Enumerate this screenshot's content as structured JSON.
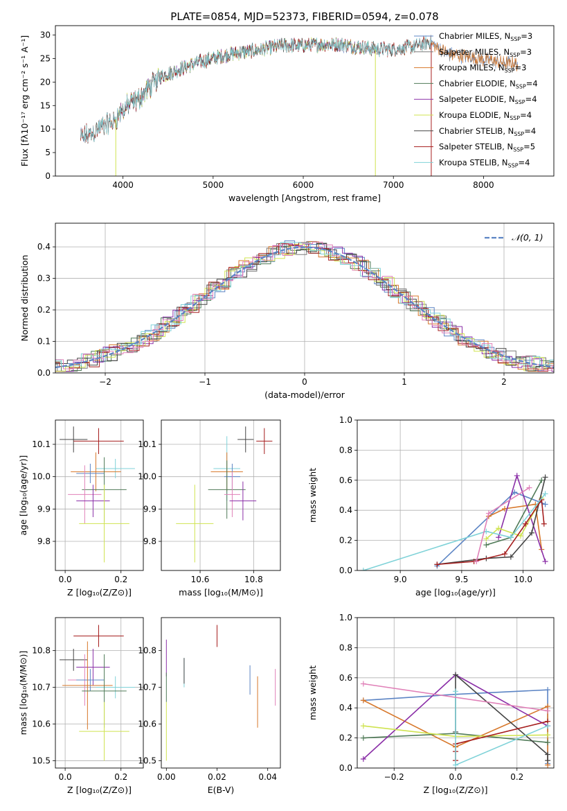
{
  "title": "PLATE=0854, MJD=52373, FIBERID=0594, z=0.078",
  "colors": {
    "chabrier_miles": "#5b84c4",
    "salpeter_miles": "#7a7a7a",
    "kroupa_miles": "#d7772a",
    "chabrier_elodie": "#4f7a57",
    "salpeter_elodie": "#8a2ea7",
    "kroupa_elodie": "#cfe34f",
    "chabrier_stelib": "#444444",
    "salpeter_stelib": "#a51d1d",
    "kroupa_stelib": "#7fd2d8",
    "pink": "#e080b8",
    "gauss": "#5b84c4",
    "grid": "#b0b0b0"
  },
  "chart_data": [
    {
      "type": "line",
      "title": "PLATE=0854, MJD=52373, FIBERID=0594, z=0.078",
      "xlabel": "wavelength [Angstrom, rest frame]",
      "ylabel": "Flux [fλ10⁻¹⁷ erg cm⁻² s⁻¹ A⁻¹]",
      "xlim": [
        3250,
        8780
      ],
      "ylim": [
        0,
        32
      ],
      "xticks": [
        4000,
        5000,
        6000,
        7000,
        8000
      ],
      "yticks": [
        0,
        5,
        10,
        15,
        20,
        25,
        30
      ],
      "grid": false,
      "legend_position": "upper-right",
      "legend": [
        {
          "name": "Chabrier MILES, N",
          "sub": "SSP",
          "tail": "=3"
        },
        {
          "name": "Salpeter MILES, N",
          "sub": "SSP",
          "tail": "=3"
        },
        {
          "name": "Kroupa MILES, N",
          "sub": "SSP",
          "tail": "=3"
        },
        {
          "name": "Chabrier ELODIE, N",
          "sub": "SSP",
          "tail": "=4"
        },
        {
          "name": "Salpeter ELODIE, N",
          "sub": "SSP",
          "tail": "=4"
        },
        {
          "name": "Kroupa ELODIE, N",
          "sub": "SSP",
          "tail": "=4"
        },
        {
          "name": "Chabrier STELIB, N",
          "sub": "SSP",
          "tail": "=4"
        },
        {
          "name": "Salpeter STELIB, N",
          "sub": "SSP",
          "tail": "=5"
        },
        {
          "name": "Kroupa STELIB, N",
          "sub": "SSP",
          "tail": "=4"
        }
      ],
      "continuum": [
        [
          3530,
          8
        ],
        [
          3650,
          9
        ],
        [
          3800,
          11
        ],
        [
          3900,
          11.5
        ],
        [
          3950,
          13
        ],
        [
          4050,
          15
        ],
        [
          4150,
          16
        ],
        [
          4300,
          19
        ],
        [
          4400,
          21
        ],
        [
          4600,
          22.5
        ],
        [
          4800,
          24
        ],
        [
          5000,
          25
        ],
        [
          5200,
          26
        ],
        [
          5400,
          26.5
        ],
        [
          5600,
          27.2
        ],
        [
          5800,
          27.8
        ],
        [
          6000,
          27.8
        ],
        [
          6200,
          28
        ],
        [
          6400,
          28
        ],
        [
          6600,
          27.5
        ],
        [
          6800,
          27
        ],
        [
          7000,
          27
        ],
        [
          7200,
          27.5
        ],
        [
          7400,
          28.5
        ],
        [
          7600,
          26
        ],
        [
          7800,
          25.5
        ],
        [
          8000,
          24.8
        ],
        [
          8200,
          24.2
        ],
        [
          8380,
          23.8
        ]
      ]
    },
    {
      "type": "bar",
      "xlabel": "(data-model)/error",
      "ylabel": "Normed distribution",
      "xlim": [
        -2.5,
        2.5
      ],
      "ylim": [
        0,
        0.475
      ],
      "xticks": [
        -2,
        -1,
        0,
        1,
        2
      ],
      "yticks": [
        0.0,
        0.1,
        0.2,
        0.3,
        0.4
      ],
      "grid": true,
      "legend_position": "upper-right",
      "gaussian_label": "𝒩(0, 1)",
      "bin_width": 0.1
    },
    {
      "type": "scatter",
      "xlabel": "Z [log₁₀(Z/Z⊙)]",
      "ylabel": "age  [log₁₀(age/yr)]",
      "xlim": [
        -0.035,
        0.28
      ],
      "ylim": [
        9.71,
        10.175
      ],
      "xticks": [
        0.0,
        0.2
      ],
      "yticks": [
        9.8,
        9.9,
        10.0,
        10.1
      ],
      "grid": true,
      "points": [
        {
          "c": "chabrier_stelib",
          "x": 0.03,
          "y": 10.115,
          "xe": 0.05,
          "ye": 0.04
        },
        {
          "c": "salpeter_stelib",
          "x": 0.12,
          "y": 10.11,
          "xe": 0.09,
          "ye": 0.04
        },
        {
          "c": "kroupa_stelib",
          "x": 0.18,
          "y": 10.025,
          "xe": 0.07,
          "ye": 0.03
        },
        {
          "c": "kroupa_miles",
          "x": 0.11,
          "y": 10.015,
          "xe": 0.09,
          "ye": 0.06
        },
        {
          "c": "chabrier_miles",
          "x": 0.09,
          "y": 10.01,
          "xe": 0.05,
          "ye": 0.03
        },
        {
          "c": "chabrier_elodie",
          "x": 0.14,
          "y": 9.96,
          "xe": 0.08,
          "ye": 0.1
        },
        {
          "c": "pink",
          "x": 0.07,
          "y": 9.945,
          "xe": 0.06,
          "ye": 0.09
        },
        {
          "c": "salpeter_elodie",
          "x": 0.1,
          "y": 9.925,
          "xe": 0.06,
          "ye": 0.05
        },
        {
          "c": "kroupa_elodie",
          "x": 0.14,
          "y": 9.855,
          "xe": 0.09,
          "ye": 0.12
        }
      ]
    },
    {
      "type": "scatter",
      "xlabel": "mass [log₁₀(M/M⊙)]",
      "ylabel": "",
      "xlim": [
        10.455,
        10.9
      ],
      "ylim": [
        9.71,
        10.175
      ],
      "xticks": [
        10.6,
        10.8
      ],
      "yticks": [
        9.8,
        9.9,
        10.0,
        10.1
      ],
      "grid": true,
      "points": [
        {
          "c": "chabrier_stelib",
          "x": 10.77,
          "y": 10.115,
          "xe": 0.03,
          "ye": 0.04
        },
        {
          "c": "salpeter_stelib",
          "x": 10.84,
          "y": 10.11,
          "xe": 0.03,
          "ye": 0.04
        },
        {
          "c": "kroupa_stelib",
          "x": 10.7,
          "y": 10.025,
          "xe": 0.05,
          "ye": 0.1
        },
        {
          "c": "kroupa_miles",
          "x": 10.7,
          "y": 10.015,
          "xe": 0.06,
          "ye": 0.06
        },
        {
          "c": "chabrier_miles",
          "x": 10.72,
          "y": 10.0,
          "xe": 0.03,
          "ye": 0.04
        },
        {
          "c": "chabrier_elodie",
          "x": 10.7,
          "y": 9.96,
          "xe": 0.07,
          "ye": 0.09
        },
        {
          "c": "pink",
          "x": 10.72,
          "y": 9.945,
          "xe": 0.03,
          "ye": 0.07
        },
        {
          "c": "salpeter_elodie",
          "x": 10.76,
          "y": 9.925,
          "xe": 0.05,
          "ye": 0.06
        },
        {
          "c": "kroupa_elodie",
          "x": 10.58,
          "y": 9.855,
          "xe": 0.07,
          "ye": 0.12
        }
      ]
    },
    {
      "type": "line",
      "xlabel": "age  [log₁₀(age/yr)]",
      "ylabel": "mass weight",
      "xlim": [
        8.65,
        10.25
      ],
      "ylim": [
        0,
        1.0
      ],
      "xticks": [
        9.0,
        9.5,
        10.0
      ],
      "yticks": [
        0.0,
        0.2,
        0.4,
        0.6,
        0.8,
        1.0
      ],
      "grid": true,
      "series": [
        {
          "c": "chabrier_miles",
          "points": [
            [
              9.3,
              0.03
            ],
            [
              9.93,
              0.52
            ],
            [
              10.18,
              0.44
            ]
          ]
        },
        {
          "c": "kroupa_miles",
          "points": [
            [
              9.72,
              0.36
            ],
            [
              9.85,
              0.41
            ],
            [
              10.1,
              0.44
            ],
            [
              10.15,
              0.14
            ]
          ]
        },
        {
          "c": "chabrier_elodie",
          "points": [
            [
              9.7,
              0.17
            ],
            [
              9.9,
              0.22
            ],
            [
              10.15,
              0.6
            ]
          ]
        },
        {
          "c": "salpeter_elodie",
          "points": [
            [
              9.8,
              0.22
            ],
            [
              9.95,
              0.63
            ],
            [
              10.18,
              0.06
            ]
          ]
        },
        {
          "c": "kroupa_elodie",
          "points": [
            [
              9.7,
              0.21
            ],
            [
              9.8,
              0.28
            ],
            [
              9.98,
              0.23
            ],
            [
              10.15,
              0.48
            ]
          ]
        },
        {
          "c": "chabrier_stelib",
          "points": [
            [
              9.3,
              0.04
            ],
            [
              9.7,
              0.08
            ],
            [
              9.9,
              0.09
            ],
            [
              10.07,
              0.25
            ],
            [
              10.18,
              0.62
            ]
          ]
        },
        {
          "c": "salpeter_stelib",
          "points": [
            [
              9.3,
              0.04
            ],
            [
              9.6,
              0.06
            ],
            [
              9.85,
              0.11
            ],
            [
              10.02,
              0.31
            ],
            [
              10.15,
              0.47
            ],
            [
              10.17,
              0.31
            ]
          ]
        },
        {
          "c": "kroupa_stelib",
          "points": [
            [
              8.7,
              0.0
            ],
            [
              9.7,
              0.26
            ],
            [
              9.9,
              0.22
            ],
            [
              10.18,
              0.51
            ]
          ]
        },
        {
          "c": "pink",
          "points": [
            [
              9.62,
              0.06
            ],
            [
              9.72,
              0.38
            ],
            [
              10.05,
              0.55
            ]
          ]
        }
      ]
    },
    {
      "type": "scatter",
      "xlabel": "Z [log₁₀(Z/Z⊙)]",
      "ylabel": "mass [log₁₀(M/M⊙)]",
      "xlim": [
        -0.035,
        0.28
      ],
      "ylim": [
        10.48,
        10.89
      ],
      "xticks": [
        0.0,
        0.2
      ],
      "yticks": [
        10.5,
        10.6,
        10.7,
        10.8
      ],
      "grid": true,
      "points": [
        {
          "c": "salpeter_stelib",
          "x": 0.12,
          "y": 10.84,
          "xe": 0.09,
          "ye": 0.03
        },
        {
          "c": "chabrier_stelib",
          "x": 0.03,
          "y": 10.775,
          "xe": 0.05,
          "ye": 0.03
        },
        {
          "c": "salpeter_elodie",
          "x": 0.1,
          "y": 10.755,
          "xe": 0.06,
          "ye": 0.05
        },
        {
          "c": "pink",
          "x": 0.07,
          "y": 10.72,
          "xe": 0.06,
          "ye": 0.07
        },
        {
          "c": "chabrier_miles",
          "x": 0.09,
          "y": 10.72,
          "xe": 0.05,
          "ye": 0.03
        },
        {
          "c": "kroupa_miles",
          "x": 0.08,
          "y": 10.705,
          "xe": 0.09,
          "ye": 0.12
        },
        {
          "c": "kroupa_stelib",
          "x": 0.18,
          "y": 10.7,
          "xe": 0.07,
          "ye": 0.03
        },
        {
          "c": "chabrier_elodie",
          "x": 0.14,
          "y": 10.69,
          "xe": 0.08,
          "ye": 0.1
        },
        {
          "c": "kroupa_elodie",
          "x": 0.14,
          "y": 10.58,
          "xe": 0.09,
          "ye": 0.08
        }
      ]
    },
    {
      "type": "scatter",
      "xlabel": "E(B-V)",
      "ylabel": "",
      "xlim": [
        -0.002,
        0.045
      ],
      "ylim": [
        10.48,
        10.89
      ],
      "xticks": [
        0.0,
        0.02,
        0.04
      ],
      "yticks": [
        10.5,
        10.6,
        10.7,
        10.8
      ],
      "grid": false,
      "points": [
        {
          "c": "salpeter_elodie",
          "x": 0.0,
          "y": 10.78,
          "xe": 0,
          "ye": 0.05
        },
        {
          "c": "chabrier_elodie",
          "x": 0.0,
          "y": 10.7,
          "xe": 0,
          "ye": 0.04
        },
        {
          "c": "kroupa_elodie",
          "x": 0.0,
          "y": 10.58,
          "xe": 0,
          "ye": 0.08
        },
        {
          "c": "kroupa_stelib",
          "x": 0.007,
          "y": 10.74,
          "xe": 0,
          "ye": 0.04
        },
        {
          "c": "chabrier_stelib",
          "x": 0.007,
          "y": 10.745,
          "xe": 0,
          "ye": 0.035
        },
        {
          "c": "salpeter_stelib",
          "x": 0.02,
          "y": 10.84,
          "xe": 0,
          "ye": 0.03
        },
        {
          "c": "chabrier_miles",
          "x": 0.033,
          "y": 10.72,
          "xe": 0,
          "ye": 0.04
        },
        {
          "c": "kroupa_miles",
          "x": 0.036,
          "y": 10.66,
          "xe": 0,
          "ye": 0.07
        },
        {
          "c": "pink",
          "x": 0.043,
          "y": 10.7,
          "xe": 0,
          "ye": 0.05
        }
      ]
    },
    {
      "type": "line",
      "xlabel": "Z [log₁₀(Z/Z⊙)]",
      "ylabel": "mass weight",
      "xlim": [
        -0.32,
        0.32
      ],
      "ylim": [
        0,
        1.0
      ],
      "xticks": [
        -0.2,
        0.0,
        0.2
      ],
      "yticks": [
        0.0,
        0.2,
        0.4,
        0.6,
        0.8,
        1.0
      ],
      "grid": true,
      "series": [
        {
          "c": "chabrier_miles",
          "points": [
            [
              -0.3,
              0.45
            ],
            [
              0.0,
              0.49
            ],
            [
              0.3,
              0.52
            ],
            [
              0.3,
              0.03
            ]
          ]
        },
        {
          "c": "kroupa_miles",
          "points": [
            [
              -0.3,
              0.45
            ],
            [
              0.0,
              0.14
            ],
            [
              0.3,
              0.41
            ],
            [
              0.3,
              0.02
            ]
          ]
        },
        {
          "c": "chabrier_elodie",
          "points": [
            [
              -0.3,
              0.2
            ],
            [
              0.0,
              0.23
            ],
            [
              0.3,
              0.17
            ]
          ]
        },
        {
          "c": "salpeter_elodie",
          "points": [
            [
              -0.3,
              0.06
            ],
            [
              0.0,
              0.62
            ],
            [
              0.3,
              0.28
            ]
          ]
        },
        {
          "c": "kroupa_elodie",
          "points": [
            [
              -0.3,
              0.28
            ],
            [
              0.0,
              0.21
            ],
            [
              0.3,
              0.22
            ]
          ]
        },
        {
          "c": "chabrier_stelib",
          "points": [
            [
              0.0,
              0.24
            ],
            [
              0.0,
              0.62
            ],
            [
              0.3,
              0.09
            ],
            [
              0.3,
              0.05
            ]
          ]
        },
        {
          "c": "salpeter_stelib",
          "points": [
            [
              0.0,
              0.05
            ],
            [
              0.0,
              0.11
            ],
            [
              0.0,
              0.16
            ],
            [
              0.3,
              0.31
            ]
          ]
        },
        {
          "c": "kroupa_stelib",
          "points": [
            [
              0.0,
              0.51
            ],
            [
              0.0,
              0.02
            ],
            [
              0.3,
              0.28
            ]
          ]
        },
        {
          "c": "pink",
          "points": [
            [
              -0.3,
              0.56
            ],
            [
              0.3,
              0.38
            ]
          ]
        }
      ]
    }
  ]
}
